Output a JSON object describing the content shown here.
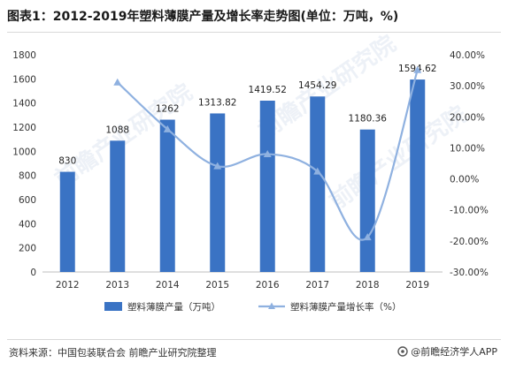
{
  "title": "图表1：2012-2019年塑料薄膜产量及增长率走势图(单位：万吨，%)",
  "footer": {
    "source": "资料来源：中国包装联合会 前瞻产业研究院整理",
    "credit": "@前瞻经济学人APP"
  },
  "watermark": "前瞻产业研究院",
  "colors": {
    "bar": "#3a73c4",
    "line": "#8fb1e0",
    "label": "#222222"
  },
  "chart_data": {
    "type": "bar",
    "categories": [
      "2012",
      "2013",
      "2014",
      "2015",
      "2016",
      "2017",
      "2018",
      "2019"
    ],
    "series": [
      {
        "name": "塑料薄膜产量（万吨）",
        "type": "bar",
        "axis": "left",
        "values": [
          830,
          1088,
          1262,
          1313.82,
          1419.52,
          1454.29,
          1180.36,
          1594.62
        ],
        "labels": [
          "830",
          "1088",
          "1262",
          "1313.82",
          "1419.52",
          "1454.29",
          "1180.36",
          "1594.62"
        ]
      },
      {
        "name": "塑料薄膜产量增长率（%）",
        "type": "line",
        "axis": "right",
        "values": [
          null,
          31.1,
          16.0,
          4.1,
          8.0,
          2.4,
          -18.8,
          35.1
        ]
      }
    ],
    "ylim": [
      0,
      1800
    ],
    "y_ticks": [
      "0",
      "200",
      "400",
      "600",
      "800",
      "1000",
      "1200",
      "1400",
      "1600",
      "1800"
    ],
    "y2lim": [
      -30,
      40
    ],
    "y2_ticks": [
      "-30.00%",
      "-20.00%",
      "-10.00%",
      "0.00%",
      "10.00%",
      "20.00%",
      "30.00%",
      "40.00%"
    ],
    "legend": "bottom",
    "grid": false
  }
}
